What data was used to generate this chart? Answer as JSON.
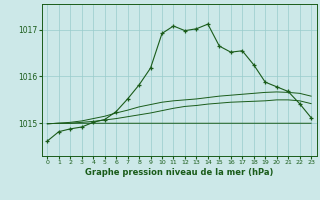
{
  "title": "Graphe pression niveau de la mer (hPa)",
  "bg_color": "#cce8e8",
  "grid_color": "#99cccc",
  "line_color": "#1a5c1a",
  "xlim": [
    -0.5,
    23.5
  ],
  "ylim": [
    1014.3,
    1017.55
  ],
  "yticks": [
    1015,
    1016,
    1017
  ],
  "xticks": [
    0,
    1,
    2,
    3,
    4,
    5,
    6,
    7,
    8,
    9,
    10,
    11,
    12,
    13,
    14,
    15,
    16,
    17,
    18,
    19,
    20,
    21,
    22,
    23
  ],
  "main_series": [
    1014.62,
    1014.82,
    1014.88,
    1014.92,
    1015.02,
    1015.08,
    1015.25,
    1015.52,
    1015.82,
    1016.18,
    1016.92,
    1017.08,
    1016.98,
    1017.02,
    1017.12,
    1016.65,
    1016.52,
    1016.55,
    1016.25,
    1015.88,
    1015.78,
    1015.68,
    1015.42,
    1015.12
  ],
  "flat_top": [
    1014.99,
    1015.0,
    1015.02,
    1015.05,
    1015.1,
    1015.15,
    1015.22,
    1015.28,
    1015.35,
    1015.4,
    1015.45,
    1015.48,
    1015.5,
    1015.52,
    1015.55,
    1015.58,
    1015.6,
    1015.62,
    1015.64,
    1015.66,
    1015.67,
    1015.66,
    1015.64,
    1015.58
  ],
  "flat_mid": [
    1014.99,
    1015.0,
    1015.0,
    1015.02,
    1015.04,
    1015.07,
    1015.1,
    1015.14,
    1015.18,
    1015.22,
    1015.27,
    1015.32,
    1015.36,
    1015.38,
    1015.41,
    1015.43,
    1015.45,
    1015.46,
    1015.47,
    1015.48,
    1015.5,
    1015.5,
    1015.48,
    1015.42
  ],
  "flat_bot": [
    1014.99,
    1015.0,
    1015.0,
    1015.0,
    1015.0,
    1015.0,
    1015.0,
    1015.0,
    1015.0,
    1015.0,
    1015.0,
    1015.0,
    1015.0,
    1015.0,
    1015.0,
    1015.0,
    1015.0,
    1015.0,
    1015.0,
    1015.0,
    1015.0,
    1015.0,
    1015.0,
    1015.0
  ]
}
